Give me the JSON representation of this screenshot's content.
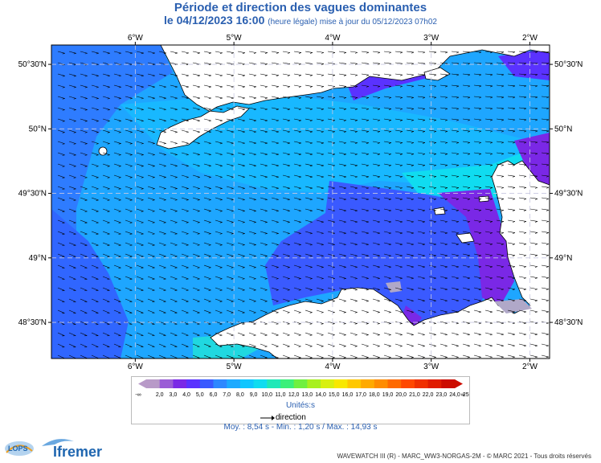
{
  "title": {
    "line1": "Période et direction des vagues dominantes",
    "date": "le 04/12/2023 16:00",
    "note": "(heure légale) mise à jour du 05/12/2023 07h02"
  },
  "map": {
    "lon_labels": [
      "6°W",
      "5°W",
      "4°W",
      "3°W",
      "2°W"
    ],
    "lat_labels": [
      "50°30'N",
      "50°N",
      "49°30'N",
      "49°N",
      "48°30'N"
    ],
    "lon_range": [
      -6.85,
      -1.8
    ],
    "lat_range": [
      48.22,
      50.65
    ],
    "land_color": "#ffffff",
    "coast_color": "#000000"
  },
  "legend": {
    "labels": [
      "-∞",
      "2,0",
      "3,0",
      "4,0",
      "5,0",
      "6,0",
      "7,0",
      "8,0",
      "9,0",
      "10,0",
      "11,0",
      "12,0",
      "13,0",
      "14,0",
      "15,0",
      "16,0",
      "17,0",
      "18,0",
      "19,0",
      "20,0",
      "21,0",
      "22,0",
      "23,0",
      "24,0",
      "25,0",
      "∞"
    ],
    "colors": [
      "#b89ac8",
      "#9a5cd6",
      "#7a28e6",
      "#5a32ff",
      "#3a5aff",
      "#2e88ff",
      "#1eaaff",
      "#10c6ff",
      "#10dcf0",
      "#20e8b8",
      "#3cf07a",
      "#70f040",
      "#a8f020",
      "#d8f010",
      "#f8e800",
      "#ffc800",
      "#ffaa00",
      "#ff8c00",
      "#ff6a00",
      "#ff4800",
      "#f03000",
      "#e01c00",
      "#cc0c00"
    ],
    "unit": "Unités:s",
    "direction_label": "direction"
  },
  "stats": {
    "text": "Moy. : 8,54 s   -   Min. : 1,20 s / Max. : 14,93 s"
  },
  "footer": "WAVEWATCH III (R) - MARC_WW3-NORGAS-2M - © MARC 2021 - Tous droits réservés",
  "logos": {
    "lops": "LOPS",
    "ifremer": "Ifremer"
  }
}
